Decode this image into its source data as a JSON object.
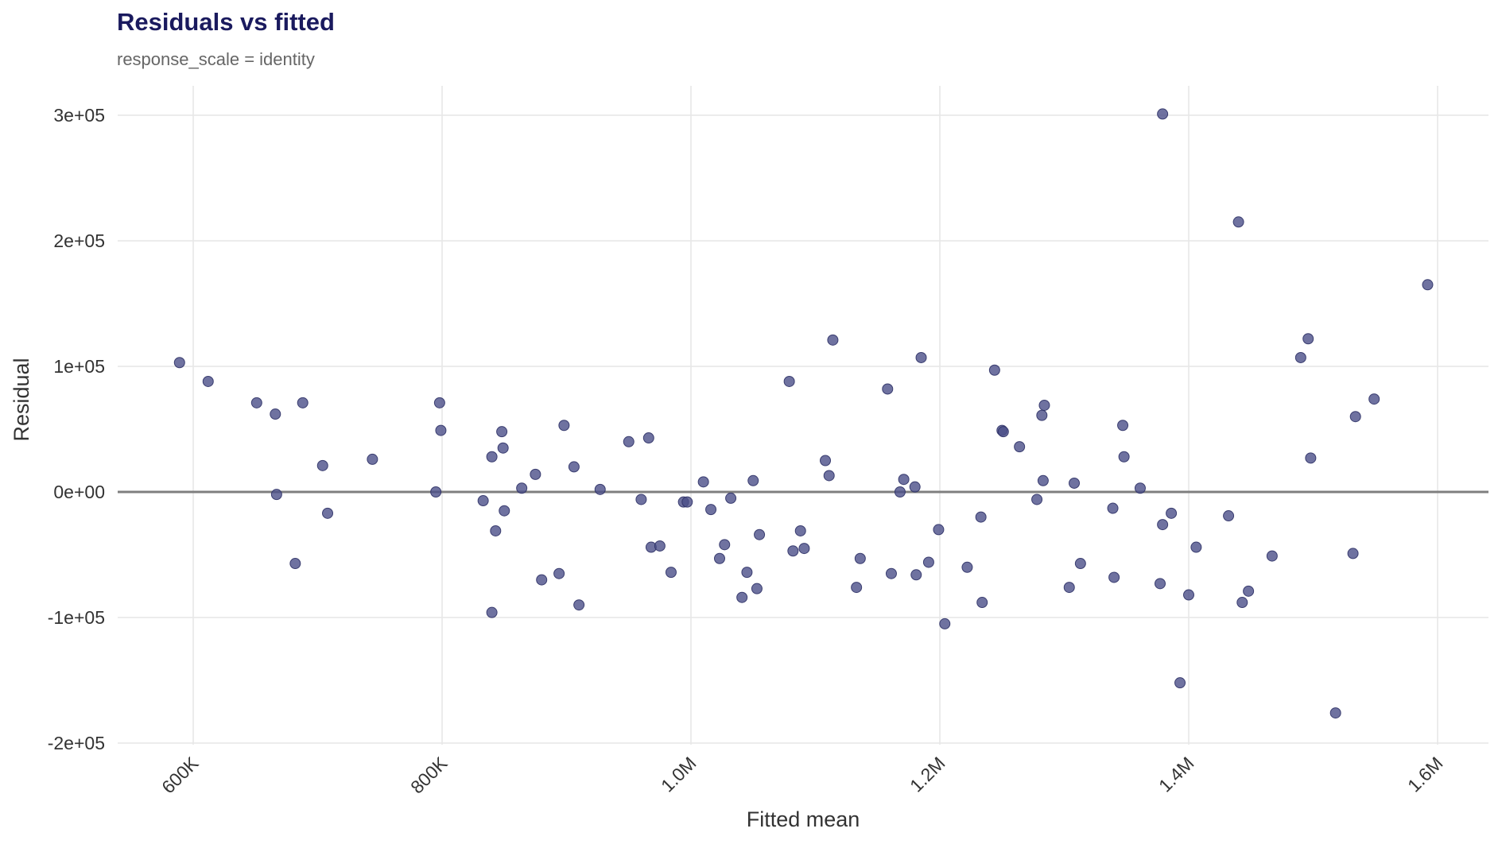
{
  "chart_data": {
    "type": "scatter",
    "title": "Residuals vs fitted",
    "subtitle": "response_scale = identity",
    "xlabel": "Fitted mean",
    "ylabel": "Residual",
    "xlim": [
      540000,
      1620000
    ],
    "ylim": [
      -200000,
      305000
    ],
    "x_ticks": [
      600000,
      800000,
      1000000,
      1200000,
      1400000,
      1600000
    ],
    "x_tick_labels": [
      "600K",
      "800K",
      "1.0M",
      "1.2M",
      "1.4M",
      "1.6M"
    ],
    "y_ticks": [
      -200000,
      -100000,
      0,
      100000,
      200000,
      300000
    ],
    "y_tick_labels": [
      "-2e+05",
      "-1e+05",
      "0e+00",
      "1e+05",
      "2e+05",
      "3e+05"
    ],
    "grid": true,
    "reference_line_y": 0,
    "colors": {
      "point": "#4b4f88",
      "point_stroke": "#2e3166",
      "reference_line": "#7f7f7f",
      "grid": "#e6e6e6",
      "title": "#1a1a5e",
      "subtitle": "#666666"
    },
    "points": [
      {
        "x": 589000,
        "y": 103000
      },
      {
        "x": 612000,
        "y": 88000
      },
      {
        "x": 651000,
        "y": 71000
      },
      {
        "x": 666000,
        "y": 62000
      },
      {
        "x": 667000,
        "y": -2000
      },
      {
        "x": 682000,
        "y": -57000
      },
      {
        "x": 688000,
        "y": 71000
      },
      {
        "x": 704000,
        "y": 21000
      },
      {
        "x": 708000,
        "y": -17000
      },
      {
        "x": 744000,
        "y": 26000
      },
      {
        "x": 795000,
        "y": 0
      },
      {
        "x": 798000,
        "y": 71000
      },
      {
        "x": 799000,
        "y": 49000
      },
      {
        "x": 833000,
        "y": -7000
      },
      {
        "x": 840000,
        "y": 28000
      },
      {
        "x": 843000,
        "y": -31000
      },
      {
        "x": 840000,
        "y": -96000
      },
      {
        "x": 848000,
        "y": 48000
      },
      {
        "x": 849000,
        "y": 35000
      },
      {
        "x": 850000,
        "y": -15000
      },
      {
        "x": 864000,
        "y": 3000
      },
      {
        "x": 875000,
        "y": 14000
      },
      {
        "x": 880000,
        "y": -70000
      },
      {
        "x": 894000,
        "y": -65000
      },
      {
        "x": 898000,
        "y": 53000
      },
      {
        "x": 906000,
        "y": 20000
      },
      {
        "x": 910000,
        "y": -90000
      },
      {
        "x": 927000,
        "y": 2000
      },
      {
        "x": 950000,
        "y": 40000
      },
      {
        "x": 960000,
        "y": -6000
      },
      {
        "x": 966000,
        "y": 43000
      },
      {
        "x": 968000,
        "y": -44000
      },
      {
        "x": 975000,
        "y": -43000
      },
      {
        "x": 984000,
        "y": -64000
      },
      {
        "x": 994000,
        "y": -8000
      },
      {
        "x": 997000,
        "y": -8000
      },
      {
        "x": 1010000,
        "y": 8000
      },
      {
        "x": 1016000,
        "y": -14000
      },
      {
        "x": 1023000,
        "y": -53000
      },
      {
        "x": 1027000,
        "y": -42000
      },
      {
        "x": 1032000,
        "y": -5000
      },
      {
        "x": 1041000,
        "y": -84000
      },
      {
        "x": 1045000,
        "y": -64000
      },
      {
        "x": 1050000,
        "y": 9000
      },
      {
        "x": 1053000,
        "y": -77000
      },
      {
        "x": 1055000,
        "y": -34000
      },
      {
        "x": 1079000,
        "y": 88000
      },
      {
        "x": 1082000,
        "y": -47000
      },
      {
        "x": 1088000,
        "y": -31000
      },
      {
        "x": 1091000,
        "y": -45000
      },
      {
        "x": 1108000,
        "y": 25000
      },
      {
        "x": 1111000,
        "y": 13000
      },
      {
        "x": 1114000,
        "y": 121000
      },
      {
        "x": 1133000,
        "y": -76000
      },
      {
        "x": 1136000,
        "y": -53000
      },
      {
        "x": 1158000,
        "y": 82000
      },
      {
        "x": 1161000,
        "y": -65000
      },
      {
        "x": 1168000,
        "y": 0
      },
      {
        "x": 1171000,
        "y": 10000
      },
      {
        "x": 1180000,
        "y": 4000
      },
      {
        "x": 1181000,
        "y": -66000
      },
      {
        "x": 1185000,
        "y": 107000
      },
      {
        "x": 1191000,
        "y": -56000
      },
      {
        "x": 1199000,
        "y": -30000
      },
      {
        "x": 1204000,
        "y": -105000
      },
      {
        "x": 1222000,
        "y": -60000
      },
      {
        "x": 1233000,
        "y": -20000
      },
      {
        "x": 1234000,
        "y": -88000
      },
      {
        "x": 1244000,
        "y": 97000
      },
      {
        "x": 1250000,
        "y": 49000
      },
      {
        "x": 1251000,
        "y": 48000
      },
      {
        "x": 1264000,
        "y": 36000
      },
      {
        "x": 1278000,
        "y": -6000
      },
      {
        "x": 1282000,
        "y": 61000
      },
      {
        "x": 1284000,
        "y": 69000
      },
      {
        "x": 1283000,
        "y": 9000
      },
      {
        "x": 1304000,
        "y": -76000
      },
      {
        "x": 1308000,
        "y": 7000
      },
      {
        "x": 1313000,
        "y": -57000
      },
      {
        "x": 1339000,
        "y": -13000
      },
      {
        "x": 1340000,
        "y": -68000
      },
      {
        "x": 1347000,
        "y": 53000
      },
      {
        "x": 1348000,
        "y": 28000
      },
      {
        "x": 1361000,
        "y": 3000
      },
      {
        "x": 1377000,
        "y": -73000
      },
      {
        "x": 1379000,
        "y": -26000
      },
      {
        "x": 1379000,
        "y": 301000
      },
      {
        "x": 1386000,
        "y": -17000
      },
      {
        "x": 1393000,
        "y": -152000
      },
      {
        "x": 1400000,
        "y": -82000
      },
      {
        "x": 1406000,
        "y": -44000
      },
      {
        "x": 1432000,
        "y": -19000
      },
      {
        "x": 1440000,
        "y": 215000
      },
      {
        "x": 1443000,
        "y": -88000
      },
      {
        "x": 1448000,
        "y": -79000
      },
      {
        "x": 1467000,
        "y": -51000
      },
      {
        "x": 1490000,
        "y": 107000
      },
      {
        "x": 1496000,
        "y": 122000
      },
      {
        "x": 1498000,
        "y": 27000
      },
      {
        "x": 1518000,
        "y": -176000
      },
      {
        "x": 1532000,
        "y": -49000
      },
      {
        "x": 1534000,
        "y": 60000
      },
      {
        "x": 1549000,
        "y": 74000
      },
      {
        "x": 1592000,
        "y": 165000
      }
    ]
  }
}
